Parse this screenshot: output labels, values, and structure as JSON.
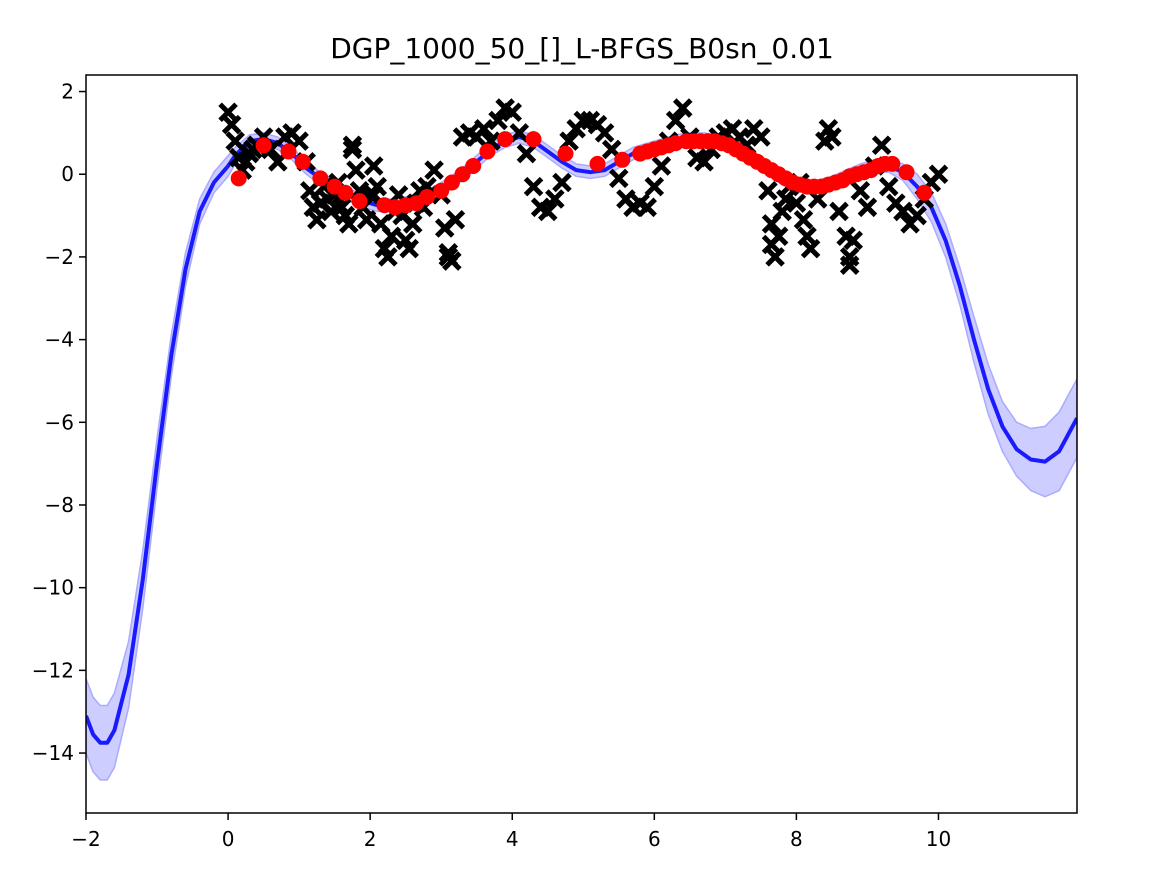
{
  "chart_data": {
    "type": "line",
    "title": "DGP_1000_50_[]_L-BFGS_B0sn_0.01",
    "xlabel": "",
    "ylabel": "",
    "xlim": [
      -2,
      11.95
    ],
    "ylim": [
      -15.45,
      2.4
    ],
    "grid": false,
    "legend": "none",
    "x_ticks": [
      -2,
      0,
      2,
      4,
      6,
      8,
      10
    ],
    "x_tick_labels": [
      "−2",
      "0",
      "2",
      "4",
      "6",
      "8",
      "10"
    ],
    "y_ticks": [
      2,
      0,
      -2,
      -4,
      -6,
      -8,
      -10,
      -12,
      -14
    ],
    "y_tick_labels": [
      "2",
      "0",
      "−2",
      "−4",
      "−6",
      "−8",
      "−10",
      "−12",
      "−14"
    ],
    "colors": {
      "mean_line": "#1a1aff",
      "band_fill": "#c8c8ff",
      "band_edge": "#aaaaff",
      "observations": "#000000",
      "inducing_points": "#ff0000"
    },
    "series": [
      {
        "kind": "mean",
        "x": [
          -2.0,
          -1.9,
          -1.8,
          -1.7,
          -1.6,
          -1.4,
          -1.2,
          -1.0,
          -0.8,
          -0.6,
          -0.4,
          -0.2,
          0.0,
          0.1,
          0.3,
          0.5,
          0.7,
          0.9,
          1.1,
          1.3,
          1.5,
          1.7,
          1.9,
          2.1,
          2.3,
          2.5,
          2.7,
          2.9,
          3.1,
          3.3,
          3.5,
          3.7,
          3.9,
          4.1,
          4.3,
          4.5,
          4.7,
          4.9,
          5.1,
          5.3,
          5.5,
          5.7,
          5.9,
          6.1,
          6.3,
          6.5,
          6.7,
          6.9,
          7.1,
          7.3,
          7.5,
          7.7,
          7.9,
          8.1,
          8.3,
          8.5,
          8.7,
          8.9,
          9.1,
          9.3,
          9.5,
          9.7,
          9.9,
          10.1,
          10.3,
          10.5,
          10.7,
          10.9,
          11.1,
          11.3,
          11.5,
          11.7,
          11.95
        ],
        "values": [
          -13.1,
          -13.55,
          -13.75,
          -13.75,
          -13.45,
          -12.1,
          -9.8,
          -7.0,
          -4.4,
          -2.3,
          -0.9,
          -0.2,
          0.2,
          0.45,
          0.8,
          0.85,
          0.75,
          0.5,
          0.15,
          -0.1,
          -0.3,
          -0.5,
          -0.65,
          -0.75,
          -0.75,
          -0.7,
          -0.6,
          -0.45,
          -0.25,
          0.0,
          0.3,
          0.6,
          0.8,
          0.9,
          0.8,
          0.55,
          0.3,
          0.1,
          0.05,
          0.1,
          0.3,
          0.5,
          0.6,
          0.7,
          0.8,
          0.85,
          0.85,
          0.8,
          0.7,
          0.5,
          0.25,
          0.0,
          -0.2,
          -0.3,
          -0.3,
          -0.2,
          -0.05,
          0.1,
          0.2,
          0.2,
          0.05,
          -0.3,
          -0.8,
          -1.6,
          -2.7,
          -4.0,
          -5.2,
          -6.1,
          -6.65,
          -6.9,
          -6.95,
          -6.7,
          -5.9
        ]
      },
      {
        "kind": "band",
        "x": [
          -2.0,
          -1.9,
          -1.8,
          -1.7,
          -1.6,
          -1.4,
          -1.2,
          -1.0,
          -0.8,
          -0.6,
          -0.4,
          -0.2,
          0.0,
          0.1,
          0.3,
          0.5,
          0.7,
          0.9,
          1.1,
          1.3,
          1.5,
          1.7,
          1.9,
          2.1,
          2.3,
          2.5,
          2.7,
          2.9,
          3.1,
          3.3,
          3.5,
          3.7,
          3.9,
          4.1,
          4.3,
          4.5,
          4.7,
          4.9,
          5.1,
          5.3,
          5.5,
          5.7,
          5.9,
          6.1,
          6.3,
          6.5,
          6.7,
          6.9,
          7.1,
          7.3,
          7.5,
          7.7,
          7.9,
          8.1,
          8.3,
          8.5,
          8.7,
          8.9,
          9.1,
          9.3,
          9.5,
          9.7,
          9.9,
          10.1,
          10.3,
          10.5,
          10.7,
          10.9,
          11.1,
          11.3,
          11.5,
          11.7,
          11.95
        ],
        "upper": [
          -12.2,
          -12.65,
          -12.85,
          -12.85,
          -12.55,
          -11.3,
          -9.1,
          -6.4,
          -3.9,
          -1.9,
          -0.6,
          0.05,
          0.45,
          0.65,
          0.95,
          1.0,
          0.9,
          0.65,
          0.3,
          0.05,
          -0.15,
          -0.35,
          -0.5,
          -0.6,
          -0.6,
          -0.55,
          -0.45,
          -0.3,
          -0.1,
          0.15,
          0.45,
          0.75,
          0.95,
          1.05,
          0.95,
          0.7,
          0.45,
          0.25,
          0.2,
          0.25,
          0.45,
          0.65,
          0.75,
          0.85,
          0.95,
          1.0,
          1.0,
          0.95,
          0.85,
          0.65,
          0.4,
          0.15,
          -0.05,
          -0.15,
          -0.15,
          -0.05,
          0.1,
          0.25,
          0.35,
          0.35,
          0.25,
          0.0,
          -0.45,
          -1.2,
          -2.25,
          -3.45,
          -4.6,
          -5.5,
          -6.0,
          -6.15,
          -6.1,
          -5.75,
          -4.95
        ],
        "lower": [
          -14.0,
          -14.45,
          -14.65,
          -14.65,
          -14.35,
          -12.9,
          -10.5,
          -7.6,
          -4.9,
          -2.7,
          -1.2,
          -0.45,
          -0.05,
          0.25,
          0.65,
          0.7,
          0.6,
          0.35,
          0.0,
          -0.25,
          -0.45,
          -0.65,
          -0.8,
          -0.9,
          -0.9,
          -0.85,
          -0.75,
          -0.6,
          -0.4,
          -0.15,
          0.15,
          0.45,
          0.65,
          0.75,
          0.65,
          0.4,
          0.15,
          -0.05,
          -0.1,
          -0.05,
          0.15,
          0.35,
          0.45,
          0.55,
          0.65,
          0.7,
          0.7,
          0.65,
          0.55,
          0.35,
          0.1,
          -0.15,
          -0.35,
          -0.45,
          -0.45,
          -0.35,
          -0.2,
          -0.05,
          0.05,
          0.05,
          -0.15,
          -0.6,
          -1.15,
          -2.0,
          -3.15,
          -4.55,
          -5.8,
          -6.7,
          -7.3,
          -7.65,
          -7.8,
          -7.65,
          -6.85
        ]
      },
      {
        "kind": "observations",
        "marker": "x",
        "x": [
          0.0,
          0.05,
          0.1,
          0.15,
          0.2,
          0.25,
          0.3,
          0.35,
          0.4,
          0.5,
          0.6,
          0.7,
          0.8,
          0.9,
          1.0,
          1.1,
          1.15,
          1.2,
          1.25,
          1.3,
          1.35,
          1.4,
          1.45,
          1.5,
          1.55,
          1.6,
          1.65,
          1.7,
          1.75,
          1.8,
          1.85,
          1.9,
          1.95,
          2.0,
          2.05,
          2.1,
          2.15,
          2.2,
          2.25,
          2.3,
          2.35,
          2.4,
          2.45,
          2.5,
          2.55,
          2.6,
          2.65,
          2.7,
          2.75,
          2.8,
          2.9,
          3.0,
          3.05,
          3.1,
          3.15,
          3.2,
          3.3,
          3.4,
          3.5,
          3.6,
          3.7,
          3.8,
          3.9,
          4.0,
          4.1,
          4.2,
          4.3,
          4.4,
          4.5,
          4.6,
          4.7,
          4.8,
          4.9,
          5.0,
          5.1,
          5.2,
          5.3,
          5.4,
          5.5,
          5.6,
          5.7,
          5.8,
          5.9,
          6.0,
          6.1,
          6.2,
          6.3,
          6.4,
          6.5,
          6.6,
          6.7,
          6.8,
          6.9,
          7.0,
          7.1,
          7.2,
          7.3,
          7.4,
          7.5,
          7.6,
          7.65,
          7.7,
          7.75,
          7.8,
          7.85,
          7.9,
          8.0,
          8.05,
          8.1,
          8.15,
          8.2,
          8.3,
          8.4,
          8.45,
          8.5,
          8.6,
          8.7,
          8.75,
          8.8,
          8.9,
          9.0,
          9.1,
          9.2,
          9.3,
          9.4,
          9.5,
          9.6,
          9.7,
          9.8,
          9.9,
          10.0,
          1.75,
          2.05,
          3.1,
          7.65,
          8.75
        ],
        "values": [
          1.5,
          1.2,
          0.8,
          0.4,
          0.1,
          0.3,
          0.5,
          0.6,
          0.7,
          0.9,
          0.6,
          0.3,
          0.9,
          1.0,
          0.8,
          0.3,
          -0.4,
          -0.8,
          -1.1,
          -0.7,
          -0.3,
          -0.6,
          -0.9,
          -0.5,
          -0.2,
          -0.8,
          -1.0,
          -1.2,
          0.7,
          0.1,
          -0.4,
          -0.8,
          -1.1,
          -0.5,
          0.2,
          -0.3,
          -1.2,
          -1.8,
          -2.0,
          -1.5,
          -0.9,
          -0.5,
          -1.0,
          -1.6,
          -1.8,
          -1.2,
          -0.7,
          -0.4,
          -0.8,
          -0.3,
          0.1,
          -0.5,
          -1.3,
          -2.0,
          -2.1,
          -1.1,
          0.9,
          1.0,
          0.9,
          1.1,
          0.8,
          1.3,
          1.6,
          1.5,
          1.0,
          0.5,
          -0.3,
          -0.8,
          -0.9,
          -0.6,
          -0.2,
          0.8,
          1.1,
          1.3,
          1.3,
          1.2,
          1.0,
          0.6,
          -0.1,
          -0.6,
          -0.8,
          -0.7,
          -0.8,
          -0.3,
          0.2,
          0.8,
          1.3,
          1.6,
          0.9,
          0.4,
          0.3,
          0.6,
          0.9,
          1.0,
          1.1,
          0.9,
          0.7,
          1.1,
          0.9,
          -0.4,
          -1.2,
          -2.0,
          -1.5,
          -0.9,
          -0.6,
          -0.3,
          -0.7,
          -0.2,
          -1.1,
          -1.5,
          -1.8,
          -0.6,
          0.8,
          1.1,
          0.9,
          -0.9,
          -1.5,
          -2.0,
          -1.6,
          -0.4,
          -0.8,
          0.2,
          0.7,
          -0.3,
          -0.7,
          -0.9,
          -1.2,
          -1.0,
          -0.6,
          -0.2,
          0.0,
          0.6,
          -0.5,
          -1.9,
          -1.7,
          -2.2
        ]
      },
      {
        "kind": "inducing_points",
        "marker": "o",
        "x": [
          0.15,
          0.5,
          0.85,
          1.05,
          1.3,
          1.5,
          1.65,
          1.85,
          2.2,
          2.35,
          2.5,
          2.65,
          2.8,
          3.0,
          3.15,
          3.3,
          3.45,
          3.65,
          3.9,
          4.3,
          4.75,
          5.2,
          5.55,
          5.8,
          5.9,
          6.0,
          6.1,
          6.2,
          6.3,
          6.45,
          6.55,
          6.65,
          6.75,
          6.85,
          6.95,
          7.05,
          7.15,
          7.25,
          7.35,
          7.45,
          7.55,
          7.65,
          7.75,
          7.85,
          7.95,
          8.05,
          8.15,
          8.25,
          8.35,
          8.45,
          8.55,
          8.65,
          8.75,
          8.85,
          8.95,
          9.05,
          9.15,
          9.25,
          9.35,
          9.55,
          9.8
        ],
        "values": [
          -0.1,
          0.7,
          0.55,
          0.3,
          -0.1,
          -0.3,
          -0.45,
          -0.65,
          -0.75,
          -0.8,
          -0.75,
          -0.7,
          -0.55,
          -0.4,
          -0.2,
          0.0,
          0.2,
          0.55,
          0.85,
          0.85,
          0.5,
          0.25,
          0.35,
          0.5,
          0.55,
          0.6,
          0.65,
          0.7,
          0.75,
          0.8,
          0.8,
          0.8,
          0.8,
          0.8,
          0.75,
          0.7,
          0.6,
          0.5,
          0.4,
          0.3,
          0.2,
          0.1,
          0.0,
          -0.1,
          -0.2,
          -0.25,
          -0.3,
          -0.3,
          -0.3,
          -0.25,
          -0.2,
          -0.15,
          -0.05,
          0.0,
          0.05,
          0.1,
          0.2,
          0.25,
          0.25,
          0.05,
          -0.45
        ]
      }
    ]
  }
}
